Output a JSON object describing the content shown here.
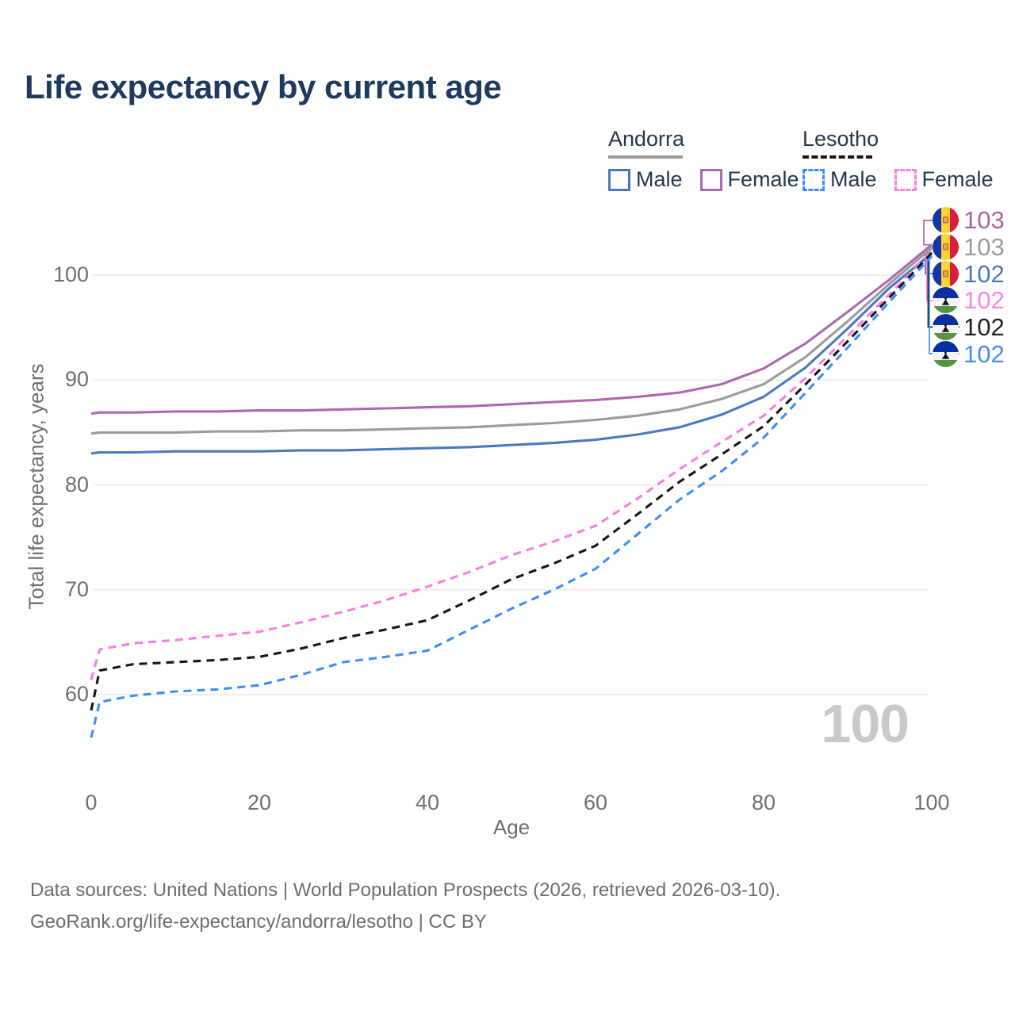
{
  "title": "Life expectancy by current age",
  "legend": {
    "groups": [
      {
        "country": "Andorra",
        "line_style": "solid",
        "underline_color": "#9b9b9b",
        "items": [
          {
            "label": "Male",
            "color": "#4b79be"
          },
          {
            "label": "Female",
            "color": "#b066b0"
          }
        ]
      },
      {
        "country": "Lesotho",
        "line_style": "dashed",
        "underline_color": "#161616",
        "items": [
          {
            "label": "Male",
            "color": "#3f8ef5"
          },
          {
            "label": "Female",
            "color": "#fc7de4"
          }
        ]
      }
    ]
  },
  "chart_data": {
    "type": "line",
    "title": "Life expectancy by current age",
    "xlabel": "Age",
    "ylabel": "Total life expectancy, years",
    "xlim": [
      0,
      100
    ],
    "ylim": [
      55,
      105
    ],
    "x_ticks": [
      0,
      20,
      40,
      60,
      80,
      100
    ],
    "y_ticks": [
      60,
      70,
      80,
      90,
      100
    ],
    "grid": "horizontal-only",
    "legend_position": "top-right",
    "watermark": "100",
    "ages": [
      0,
      1,
      5,
      10,
      15,
      20,
      25,
      30,
      35,
      40,
      45,
      50,
      55,
      60,
      65,
      70,
      75,
      80,
      85,
      90,
      95,
      100
    ],
    "series": [
      {
        "name": "Andorra Female",
        "country": "Andorra",
        "sex": "Female",
        "style": "solid",
        "color": "#b066b0",
        "end_label": "103",
        "values": [
          86.8,
          86.9,
          86.9,
          87.0,
          87.0,
          87.1,
          87.1,
          87.2,
          87.3,
          87.4,
          87.5,
          87.7,
          87.9,
          88.1,
          88.4,
          88.8,
          89.6,
          91.1,
          93.5,
          96.5,
          99.6,
          102.9
        ]
      },
      {
        "name": "Andorra Total",
        "country": "Andorra",
        "sex": "Total",
        "style": "solid",
        "color": "#9b9b9b",
        "end_label": "103",
        "values": [
          84.9,
          85.0,
          85.0,
          85.0,
          85.1,
          85.1,
          85.2,
          85.2,
          85.3,
          85.4,
          85.5,
          85.7,
          85.9,
          86.2,
          86.6,
          87.2,
          88.2,
          89.6,
          92.2,
          95.6,
          99.2,
          102.6
        ]
      },
      {
        "name": "Andorra Male",
        "country": "Andorra",
        "sex": "Male",
        "style": "solid",
        "color": "#4b79be",
        "end_label": "102",
        "values": [
          83.0,
          83.1,
          83.1,
          83.2,
          83.2,
          83.2,
          83.3,
          83.3,
          83.4,
          83.5,
          83.6,
          83.8,
          84.0,
          84.3,
          84.8,
          85.5,
          86.7,
          88.4,
          91.2,
          94.9,
          98.8,
          102.1
        ]
      },
      {
        "name": "Lesotho Female",
        "country": "Lesotho",
        "sex": "Female",
        "style": "dashed",
        "color": "#fc7de4",
        "end_label": "102",
        "values": [
          61.4,
          64.3,
          64.9,
          65.2,
          65.6,
          66.0,
          66.9,
          67.9,
          69.0,
          70.3,
          71.7,
          73.3,
          74.6,
          76.1,
          78.7,
          81.5,
          84.1,
          86.6,
          90.2,
          94.2,
          98.2,
          102.3
        ]
      },
      {
        "name": "Lesotho Total",
        "country": "Lesotho",
        "sex": "Total",
        "style": "dashed",
        "color": "#161616",
        "end_label": "102",
        "values": [
          58.5,
          62.3,
          62.9,
          63.1,
          63.3,
          63.6,
          64.4,
          65.4,
          66.2,
          67.1,
          69.0,
          71.0,
          72.5,
          74.2,
          77.2,
          80.3,
          82.9,
          85.6,
          89.6,
          93.7,
          97.9,
          102.1
        ]
      },
      {
        "name": "Lesotho Male",
        "country": "Lesotho",
        "sex": "Male",
        "style": "dashed",
        "color": "#3f8ef5",
        "end_label": "102",
        "values": [
          55.9,
          59.3,
          59.9,
          60.3,
          60.5,
          60.9,
          61.9,
          63.1,
          63.6,
          64.2,
          66.2,
          68.2,
          70.0,
          72.0,
          75.3,
          78.6,
          81.3,
          84.5,
          88.8,
          93.1,
          97.5,
          101.8
        ]
      }
    ]
  },
  "right_labels": [
    {
      "value": "103",
      "flag": "andorra-flag",
      "color": "#a964a9"
    },
    {
      "value": "103",
      "flag": "andorra-flag",
      "color": "#9b9b9b"
    },
    {
      "value": "102",
      "flag": "andorra-flag",
      "color": "#4b79be"
    },
    {
      "value": "102",
      "flag": "lesotho-flag",
      "color": "#ff85ea"
    },
    {
      "value": "102",
      "flag": "lesotho-flag",
      "color": "#222222"
    },
    {
      "value": "102",
      "flag": "lesotho-flag",
      "color": "#4190f7"
    }
  ],
  "footer": {
    "line1": "Data sources: United Nations | World Population Prospects (2026, retrieved 2026-03-10).",
    "line2": "GeoRank.org/life-expectancy/andorra/lesotho | CC BY"
  },
  "colors": {
    "title": "#1e3a5f",
    "legend_text": "#24384f",
    "grid": "#eaeaea",
    "tick_labels": "#6f6f6f",
    "watermark": "#c9c9c9",
    "footer_text": "#6d6d6d",
    "andorra_male": "#4b79be",
    "andorra_female": "#b066b0",
    "andorra_total": "#9b9b9b",
    "lesotho_male": "#3f8ef5",
    "lesotho_female": "#fc7de4",
    "lesotho_total": "#161616"
  }
}
